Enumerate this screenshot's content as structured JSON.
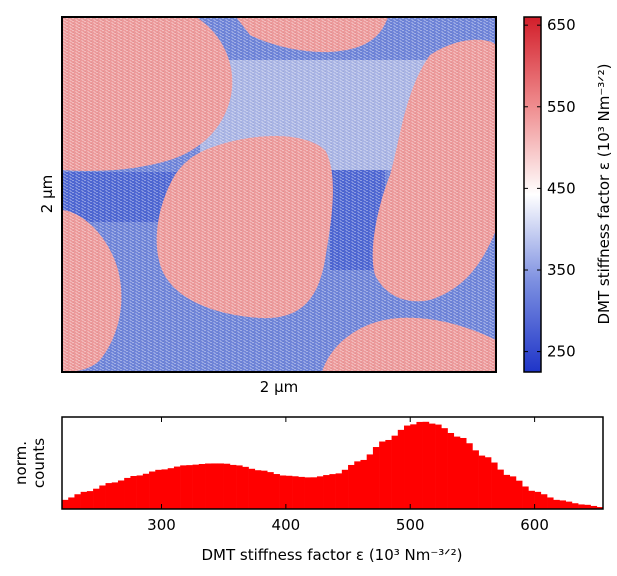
{
  "chart_data": [
    {
      "type": "heatmap",
      "title": "",
      "xlabel": "2 μm",
      "ylabel": "2 μm",
      "colorbar": {
        "label": "DMT stiffness factor ε (10³ Nm⁻³ᐟ²)",
        "range": [
          225,
          660
        ],
        "ticks": [
          250,
          350,
          450,
          550,
          650
        ],
        "colors": {
          "low": "#1f35c8",
          "mid": "#ffffff",
          "high": "#d21e2a"
        }
      },
      "regions": {
        "high_phase_value": 540,
        "low_phase_value": 340
      }
    },
    {
      "type": "area",
      "title": "",
      "xlabel": "DMT stiffness factor ε (10³ Nm⁻³ᐟ²)",
      "ylabel": "norm. counts",
      "xlim": [
        220,
        655
      ],
      "ylim": [
        0,
        1.05
      ],
      "xticks": [
        300,
        400,
        500,
        600
      ],
      "color": "#ff0000",
      "x": [
        220,
        240,
        260,
        280,
        300,
        320,
        340,
        350,
        360,
        380,
        400,
        420,
        440,
        460,
        480,
        500,
        510,
        520,
        540,
        560,
        580,
        600,
        620,
        640,
        655
      ],
      "values": [
        0.1,
        0.2,
        0.3,
        0.38,
        0.45,
        0.5,
        0.52,
        0.52,
        0.5,
        0.44,
        0.38,
        0.36,
        0.4,
        0.55,
        0.78,
        0.96,
        1.0,
        0.97,
        0.82,
        0.6,
        0.38,
        0.2,
        0.1,
        0.05,
        0.02
      ]
    }
  ],
  "labels": {
    "map_x": "2 μm",
    "map_y": "2 μm",
    "colorbar_label": "DMT stiffness factor ε (10³ Nm⁻³ᐟ²)",
    "hist_ylabel_line1": "norm.",
    "hist_ylabel_line2": "counts",
    "hist_xlabel": "DMT stiffness factor ε (10³ Nm⁻³ᐟ²)"
  }
}
